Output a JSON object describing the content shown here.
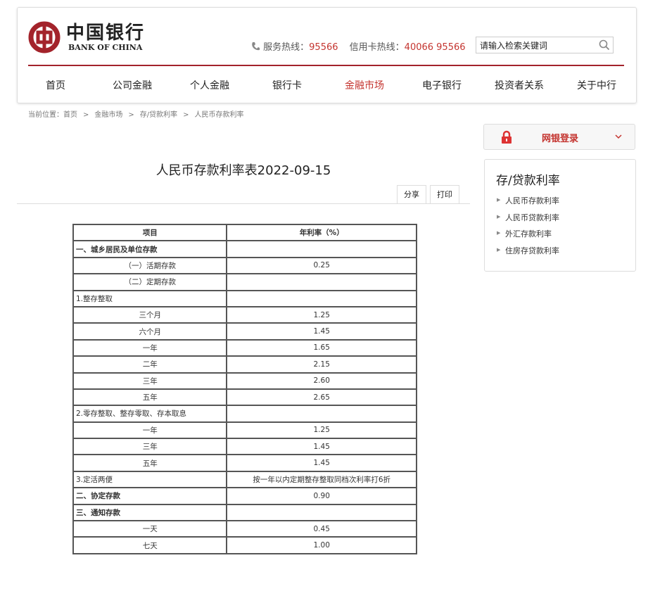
{
  "header": {
    "logo_cn": "中国银行",
    "logo_en": "BANK OF CHINA",
    "service_label": "服务热线：",
    "service_number": "95566",
    "card_label": "信用卡热线：",
    "card_number": "40066 95566",
    "search_placeholder": "请输入检索关键词"
  },
  "nav": [
    "首页",
    "公司金融",
    "个人金融",
    "银行卡",
    "金融市场",
    "电子银行",
    "投资者关系",
    "关于中行"
  ],
  "breadcrumb": [
    "当前位置：",
    "首页",
    "金融市场",
    "存/贷款利率",
    "人民币存款利率"
  ],
  "article": {
    "title": "人民币存款利率表2022-09-15",
    "buttons": [
      "分享",
      "打印"
    ]
  },
  "table": {
    "header": [
      "项目",
      "年利率（%）"
    ],
    "rows": [
      [
        "一、城乡居民及单位存款"
      ],
      [
        "（一）活期存款",
        "0.25"
      ],
      [
        "（二）定期存款"
      ],
      [
        "1.整存整取"
      ],
      [
        "三个月",
        "1.25"
      ],
      [
        "六个月",
        "1.45"
      ],
      [
        "一年",
        "1.65"
      ],
      [
        "二年",
        "2.15"
      ],
      [
        "三年",
        "2.60"
      ],
      [
        "五年",
        "2.65"
      ],
      [
        "2.零存整取、整存零取、存本取息"
      ],
      [
        "一年",
        "1.25"
      ],
      [
        "三年",
        "1.45"
      ],
      [
        "五年",
        "1.45"
      ],
      [
        "3.定活两便",
        "按一年以内定期整存整取同档次利率打6折"
      ],
      [
        "二、协定存款",
        "0.90"
      ],
      [
        "三、通知存款"
      ],
      [
        "一天",
        "0.45"
      ],
      [
        "七天",
        "1.00"
      ]
    ]
  },
  "sidebar": {
    "login": "网银登录",
    "title": "存/贷款利率",
    "links": [
      "人民币存款利率",
      "人民币贷款利率",
      "外汇存款利率",
      "住房存贷款利率"
    ]
  }
}
